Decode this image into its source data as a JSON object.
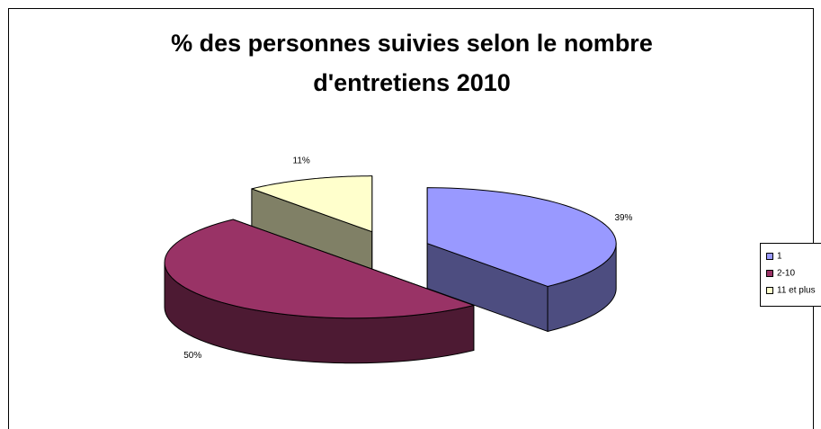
{
  "chart_data": {
    "type": "pie3d",
    "title": [
      "% des personnes suivies selon le nombre",
      "d'entretiens 2010"
    ],
    "categories": [
      "1",
      "2-10",
      "11 et plus"
    ],
    "values": [
      39,
      50,
      11
    ],
    "value_labels": [
      "39%",
      "50%",
      "11%"
    ],
    "colors": [
      "#9999ff",
      "#993366",
      "#ffffcc"
    ],
    "legend": "right"
  }
}
